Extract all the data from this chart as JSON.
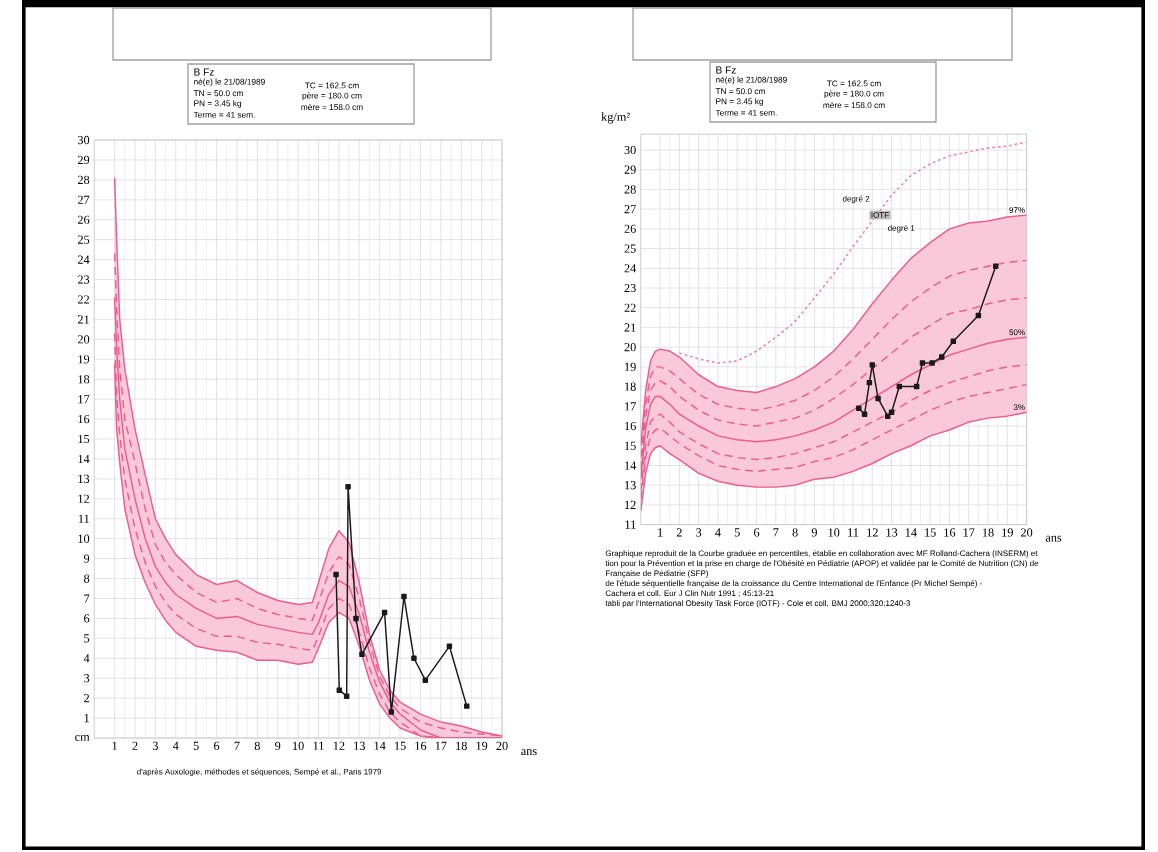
{
  "chart_data": [
    {
      "type": "other",
      "title": "B Fz",
      "annotations": [
        "né(e) le 21/08/1989",
        "TN = 50.0 cm",
        "PN = 3.45 kg",
        "Terme = 41 sem.",
        "TC = 162.5 cm",
        "père = 180.0 cm",
        "mère = 158.0 cm"
      ]
    },
    {
      "type": "line",
      "x": [
        1,
        1.1,
        1.25,
        1.5,
        2,
        2.5,
        3,
        3.5,
        4,
        5,
        6,
        7,
        8,
        9,
        10,
        10.7,
        11,
        11.5,
        12,
        12.5,
        13,
        13.5,
        14,
        14.5,
        15,
        16,
        17,
        18,
        19,
        20
      ],
      "xlim": [
        0,
        20
      ],
      "ylim": [
        0,
        30
      ],
      "xticks": [
        1,
        2,
        3,
        4,
        5,
        6,
        7,
        8,
        9,
        10,
        11,
        12,
        13,
        14,
        15,
        16,
        17,
        18,
        19,
        20
      ],
      "yticks": [
        {
          "value": 0,
          "label": "cm"
        },
        1,
        2,
        3,
        4,
        5,
        6,
        7,
        8,
        9,
        10,
        11,
        12,
        13,
        14,
        15,
        16,
        17,
        18,
        19,
        20,
        21,
        22,
        23,
        24,
        25,
        26,
        27,
        28,
        29,
        30
      ],
      "xlabel": "ans",
      "grid": true,
      "marker": "none",
      "series": [
        {
          "color": "#ee5c8f",
          "line_style": "solid",
          "values": [
            28.1,
            25,
            21,
            18.5,
            15.5,
            13.2,
            11,
            10,
            9.2,
            8.2,
            7.7,
            7.9,
            7.3,
            6.9,
            6.7,
            6.8,
            7.8,
            9.5,
            10.4,
            9.8,
            7.8,
            5.2,
            3.4,
            2.4,
            1.8,
            1.2,
            0.8,
            0.6,
            0.3,
            0.1
          ]
        },
        {
          "color": "#ee5c8f",
          "line_style": "dashed",
          "values": [
            24.3,
            21.5,
            18.5,
            16,
            13.8,
            11.5,
            9.7,
            8.8,
            8.2,
            7.3,
            6.8,
            7.0,
            6.5,
            6.2,
            6.0,
            5.9,
            6.8,
            8.3,
            9.1,
            8.7,
            7.0,
            4.8,
            3.1,
            2.1,
            1.5,
            0.8,
            0.5,
            0.3,
            0.2,
            0.1
          ]
        },
        {
          "color": "#ee5c8f",
          "line_style": "solid",
          "x": [
            1,
            1.1,
            1.25,
            1.5,
            2,
            2.5,
            3,
            3.5,
            4,
            5,
            6,
            7,
            8,
            9,
            10,
            10.7,
            11,
            11.5,
            12,
            12.5,
            13,
            13.5,
            14,
            14.5,
            15,
            16,
            17,
            20
          ],
          "values": [
            22.1,
            19.5,
            17,
            14.5,
            12,
            10,
            8.6,
            7.8,
            7.2,
            6.5,
            6.0,
            6.1,
            5.7,
            5.5,
            5.3,
            5.2,
            5.8,
            7.2,
            7.9,
            7.6,
            6.2,
            4.3,
            2.8,
            1.8,
            1.2,
            0.4,
            0,
            0
          ],
          "lower": [
            18.8,
            15.5,
            13.8,
            11.5,
            9.2,
            7.8,
            6.7,
            5.9,
            5.3,
            4.6,
            4.4,
            4.3,
            3.9,
            3.9,
            3.7,
            3.8,
            4.5,
            5.8,
            6.3,
            6.0,
            4.6,
            2.9,
            1.7,
            1.0,
            0.5,
            0.1,
            0,
            0
          ],
          "upper": [
            28.1,
            25,
            21,
            18.5,
            15.5,
            13.2,
            11,
            10,
            9.2,
            8.2,
            7.7,
            7.9,
            7.3,
            6.9,
            6.7,
            6.8,
            7.8,
            9.5,
            10.4,
            9.8,
            7.8,
            5.2,
            3.4,
            2.4,
            1.8,
            1.2,
            0.8,
            0.1
          ]
        },
        {
          "color": "#ee5c8f",
          "line_style": "dashed",
          "values": [
            20.3,
            17.2,
            15.2,
            13,
            10.5,
            8.8,
            7.6,
            6.8,
            6.2,
            5.5,
            5.1,
            5.1,
            4.8,
            4.7,
            4.5,
            4.4,
            5.1,
            6.5,
            7.0,
            6.7,
            5.3,
            3.5,
            2.2,
            1.3,
            0.8,
            0.1,
            0,
            0,
            0,
            0
          ]
        },
        {
          "color": "#ee5c8f",
          "line_style": "solid",
          "values": [
            18.8,
            15.5,
            13.8,
            11.5,
            9.2,
            7.8,
            6.7,
            5.9,
            5.3,
            4.6,
            4.4,
            4.3,
            3.9,
            3.9,
            3.7,
            3.8,
            4.5,
            5.8,
            6.3,
            6.0,
            4.6,
            2.9,
            1.7,
            1.0,
            0.5,
            0.1,
            0,
            0,
            0,
            0
          ]
        },
        {
          "color": "#1a1a1a",
          "line_style": "solid",
          "marker": "square",
          "x": [
            11.86,
            12.02,
            12.38,
            12.45,
            12.84,
            13.13,
            14.24,
            14.57,
            15.19,
            15.68,
            16.24,
            17.42,
            18.27
          ],
          "values": [
            8.2,
            2.4,
            2.1,
            12.6,
            6.0,
            4.2,
            6.3,
            1.3,
            7.1,
            4.0,
            2.9,
            4.6,
            1.6
          ]
        }
      ],
      "annotations": [
        "d'après Auxologie, méthodes et séquences, Sempé et al., Paris 1979"
      ]
    },
    {
      "type": "other",
      "title": "B Fz",
      "annotations": [
        "né(e) le 21/08/1989",
        "TN = 50.0 cm",
        "PN = 3.45 kg",
        "Terme = 41 sem.",
        "TC = 162.5 cm",
        "père = 180.0 cm",
        "mère = 158.0 cm"
      ]
    },
    {
      "type": "line",
      "x": [
        0,
        0.25,
        0.5,
        0.75,
        1,
        1.5,
        2,
        3,
        4,
        5,
        6,
        7,
        8,
        9,
        10,
        11,
        12,
        13,
        14,
        15,
        16,
        17,
        18,
        19,
        20
      ],
      "xlim": [
        0,
        20
      ],
      "ylim": [
        11,
        30.8
      ],
      "xticks": [
        1,
        2,
        3,
        4,
        5,
        6,
        7,
        8,
        9,
        10,
        11,
        12,
        13,
        14,
        15,
        16,
        17,
        18,
        19,
        20
      ],
      "yticks": [
        11,
        12,
        13,
        14,
        15,
        16,
        17,
        18,
        19,
        20,
        21,
        22,
        23,
        24,
        25,
        26,
        27,
        28,
        29,
        30
      ],
      "xlabel": "ans",
      "ylabel": "kg/m²",
      "grid": true,
      "marker": "none",
      "series": [
        {
          "name": "97%",
          "color": "#ee5c8f",
          "line_style": "solid",
          "values": [
            15.0,
            17.8,
            19.3,
            19.8,
            19.9,
            19.8,
            19.5,
            18.6,
            18.0,
            17.8,
            17.7,
            18.0,
            18.4,
            19.0,
            19.8,
            20.9,
            22.2,
            23.4,
            24.5,
            25.3,
            26.0,
            26.3,
            26.4,
            26.6,
            26.7
          ]
        },
        {
          "color": "#ee5c8f",
          "line_style": "dashed",
          "values": [
            14.4,
            17.1,
            18.5,
            19.0,
            19.0,
            18.8,
            18.4,
            17.6,
            17.1,
            16.9,
            16.8,
            17.0,
            17.3,
            17.8,
            18.5,
            19.4,
            20.4,
            21.4,
            22.3,
            23.0,
            23.6,
            23.9,
            24.1,
            24.3,
            24.4
          ]
        },
        {
          "color": "#ee5c8f",
          "line_style": "dashed",
          "values": [
            13.8,
            16.5,
            17.8,
            18.2,
            18.3,
            18.0,
            17.5,
            16.8,
            16.3,
            16.1,
            16.0,
            16.2,
            16.4,
            16.8,
            17.4,
            18.1,
            18.9,
            19.7,
            20.5,
            21.1,
            21.7,
            21.9,
            22.2,
            22.4,
            22.5
          ]
        },
        {
          "name": "50%",
          "color": "#ee5c8f",
          "line_style": "solid",
          "values": [
            13.3,
            15.9,
            17.1,
            17.5,
            17.5,
            17.1,
            16.6,
            16.0,
            15.5,
            15.3,
            15.2,
            15.3,
            15.5,
            15.8,
            16.2,
            16.8,
            17.4,
            18.0,
            18.6,
            19.1,
            19.6,
            19.9,
            20.2,
            20.4,
            20.5
          ],
          "lower": [
            11.7,
            13.6,
            14.6,
            14.9,
            15.0,
            14.6,
            14.3,
            13.6,
            13.2,
            13.0,
            12.9,
            12.9,
            13.0,
            13.3,
            13.4,
            13.7,
            14.1,
            14.6,
            15.0,
            15.5,
            15.8,
            16.2,
            16.4,
            16.5,
            16.7
          ],
          "upper": [
            15.0,
            17.8,
            19.3,
            19.8,
            19.9,
            19.8,
            19.5,
            18.6,
            18.0,
            17.8,
            17.7,
            18.0,
            18.4,
            19.0,
            19.8,
            20.9,
            22.2,
            23.4,
            24.5,
            25.3,
            26.0,
            26.3,
            26.4,
            26.6,
            26.7
          ]
        },
        {
          "color": "#ee5c8f",
          "line_style": "dashed",
          "values": [
            12.7,
            15.0,
            16.2,
            16.5,
            16.6,
            16.2,
            15.7,
            15.1,
            14.6,
            14.4,
            14.3,
            14.4,
            14.6,
            14.9,
            15.2,
            15.7,
            16.2,
            16.7,
            17.3,
            17.8,
            18.2,
            18.5,
            18.8,
            19.0,
            19.1
          ]
        },
        {
          "color": "#ee5c8f",
          "line_style": "dashed",
          "values": [
            12.3,
            14.4,
            15.5,
            15.8,
            15.9,
            15.5,
            15.1,
            14.5,
            14.0,
            13.8,
            13.7,
            13.8,
            13.9,
            14.2,
            14.4,
            14.8,
            15.3,
            15.8,
            16.3,
            16.8,
            17.2,
            17.5,
            17.7,
            17.9,
            18.1
          ]
        },
        {
          "name": "3%",
          "color": "#ee5c8f",
          "line_style": "solid",
          "values": [
            11.7,
            13.6,
            14.6,
            14.9,
            15.0,
            14.6,
            14.3,
            13.6,
            13.2,
            13.0,
            12.9,
            12.9,
            13.0,
            13.3,
            13.4,
            13.7,
            14.1,
            14.6,
            15.0,
            15.5,
            15.8,
            16.2,
            16.4,
            16.5,
            16.7
          ]
        },
        {
          "color": "#f27aa5",
          "line_style": "dotted",
          "x": [
            2,
            3,
            4,
            5,
            6,
            7,
            8,
            9,
            10,
            11,
            12,
            13,
            14,
            15,
            16,
            17,
            18,
            19,
            20
          ],
          "values": [
            19.7,
            19.4,
            19.2,
            19.3,
            19.8,
            20.5,
            21.3,
            22.5,
            23.7,
            25.1,
            26.4,
            27.7,
            28.7,
            29.3,
            29.7,
            29.9,
            30.1,
            30.2,
            30.4
          ]
        },
        {
          "color": "#1a1a1a",
          "line_style": "solid",
          "marker": "square",
          "x": [
            11.3,
            11.6,
            11.85,
            12.0,
            12.3,
            12.8,
            13.0,
            13.4,
            14.3,
            14.6,
            15.1,
            15.6,
            16.2,
            17.5,
            18.4
          ],
          "values": [
            16.9,
            16.6,
            18.2,
            19.1,
            17.4,
            16.5,
            16.7,
            18.0,
            18.0,
            19.2,
            19.2,
            19.5,
            20.3,
            21.6,
            24.1
          ]
        }
      ],
      "annotations": [
        "degré 2",
        {
          "text": "IOTF",
          "x": 12.4,
          "y": 26.7
        },
        "degré 1",
        "Graphique reproduit de la Courbe graduée en percentiles, établie en collaboration avec MF Rolland-Cachera (INSERM) et",
        "tion pour la Prévention et la prise en charge de l'Obésité en Pédiatrie (APOP) et validée par le Comité de Nutrition (CN) de",
        "Française de Pédiatrie (SFP)",
        "de l'étude séquentielle française de la croissance du Centre International de l'Enfance (Pr Michel Sempé) -",
        "Cachera et coll. Eur J Clin Nutr 1991 ; 45:13-21",
        "tabli par l'International Obesity Task Force (IOTF) - Cole et coll. BMJ 2000;320:1240-3"
      ]
    }
  ]
}
